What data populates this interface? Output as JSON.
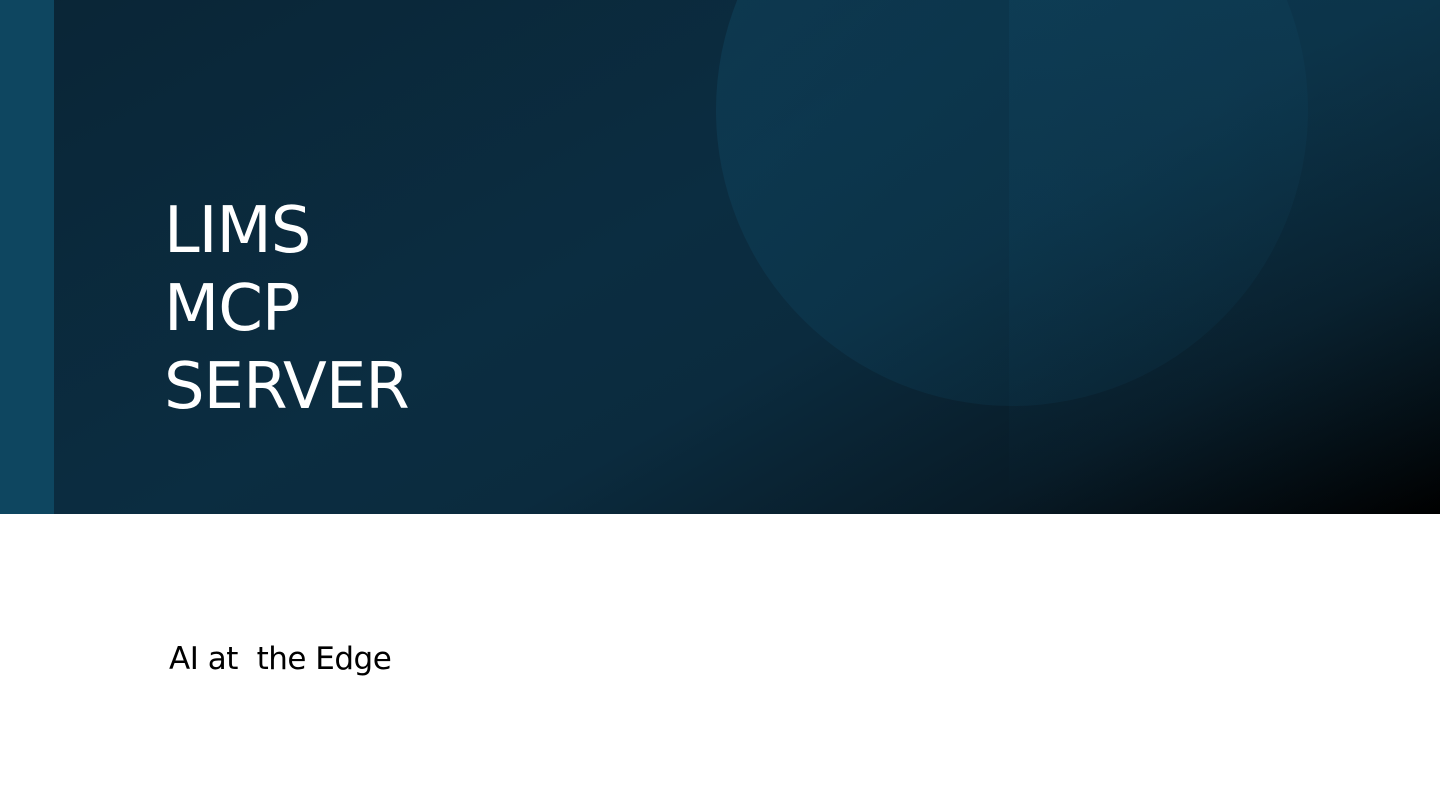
{
  "slide": {
    "title_lines": [
      "LIMS",
      "MCP",
      "SERVER"
    ],
    "subtitle": "AI at  the Edge"
  },
  "colors": {
    "hero_background": "#0b2b3e",
    "hero_shadow": "#000000",
    "left_strip": "#0e4660",
    "decor_shape": "#0f4661",
    "title_text": "#ffffff",
    "subtitle_text": "#000000",
    "page_background": "#ffffff"
  }
}
